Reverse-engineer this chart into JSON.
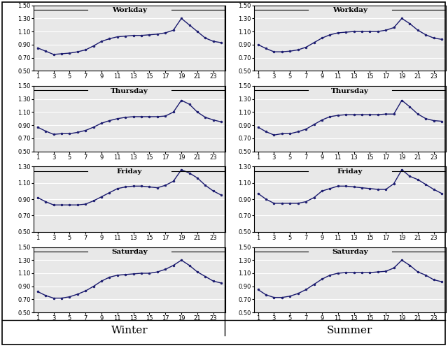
{
  "x": [
    1,
    2,
    3,
    4,
    5,
    6,
    7,
    8,
    9,
    10,
    11,
    12,
    13,
    14,
    15,
    16,
    17,
    18,
    19,
    20,
    21,
    22,
    23,
    24
  ],
  "winter_workday": [
    0.85,
    0.8,
    0.75,
    0.76,
    0.77,
    0.79,
    0.82,
    0.88,
    0.95,
    0.99,
    1.02,
    1.03,
    1.04,
    1.04,
    1.05,
    1.06,
    1.08,
    1.12,
    1.3,
    1.2,
    1.1,
    1.0,
    0.95,
    0.93
  ],
  "winter_thursday": [
    0.87,
    0.81,
    0.76,
    0.77,
    0.77,
    0.79,
    0.82,
    0.87,
    0.93,
    0.97,
    1.0,
    1.02,
    1.03,
    1.03,
    1.03,
    1.03,
    1.04,
    1.1,
    1.28,
    1.22,
    1.1,
    1.02,
    0.98,
    0.95
  ],
  "winter_friday": [
    0.92,
    0.87,
    0.83,
    0.83,
    0.83,
    0.83,
    0.84,
    0.88,
    0.93,
    0.98,
    1.03,
    1.05,
    1.06,
    1.06,
    1.05,
    1.04,
    1.07,
    1.12,
    1.26,
    1.22,
    1.16,
    1.07,
    1.0,
    0.95
  ],
  "winter_saturday": [
    0.82,
    0.76,
    0.72,
    0.72,
    0.74,
    0.78,
    0.83,
    0.9,
    0.98,
    1.04,
    1.07,
    1.08,
    1.09,
    1.1,
    1.1,
    1.12,
    1.16,
    1.22,
    1.3,
    1.22,
    1.12,
    1.05,
    0.98,
    0.95
  ],
  "summer_workday": [
    0.9,
    0.84,
    0.79,
    0.79,
    0.8,
    0.82,
    0.86,
    0.93,
    1.0,
    1.05,
    1.08,
    1.09,
    1.1,
    1.1,
    1.1,
    1.1,
    1.12,
    1.16,
    1.3,
    1.22,
    1.12,
    1.05,
    1.0,
    0.98
  ],
  "summer_thursday": [
    0.87,
    0.8,
    0.75,
    0.77,
    0.77,
    0.8,
    0.84,
    0.91,
    0.98,
    1.03,
    1.05,
    1.06,
    1.06,
    1.06,
    1.06,
    1.06,
    1.07,
    1.07,
    1.28,
    1.18,
    1.07,
    1.0,
    0.97,
    0.96
  ],
  "summer_friday": [
    0.97,
    0.9,
    0.85,
    0.85,
    0.85,
    0.85,
    0.87,
    0.92,
    1.0,
    1.03,
    1.06,
    1.06,
    1.05,
    1.04,
    1.03,
    1.02,
    1.02,
    1.09,
    1.26,
    1.18,
    1.14,
    1.08,
    1.02,
    0.97
  ],
  "summer_saturday": [
    0.85,
    0.77,
    0.73,
    0.73,
    0.75,
    0.79,
    0.85,
    0.93,
    1.01,
    1.07,
    1.1,
    1.11,
    1.11,
    1.11,
    1.11,
    1.12,
    1.13,
    1.18,
    1.3,
    1.22,
    1.12,
    1.07,
    1.0,
    0.97
  ],
  "row_labels": [
    "Workday",
    "Thursday",
    "Friday",
    "Saturday"
  ],
  "col_labels": [
    "Winter",
    "Summer"
  ],
  "ylim_configs": [
    [
      0.5,
      1.5,
      [
        0.5,
        0.7,
        0.9,
        1.1,
        1.3,
        1.5
      ]
    ],
    [
      0.5,
      1.5,
      [
        0.5,
        0.7,
        0.9,
        1.1,
        1.3,
        1.5
      ]
    ],
    [
      0.5,
      1.3,
      [
        0.5,
        0.7,
        0.9,
        1.1,
        1.3
      ]
    ],
    [
      0.5,
      1.5,
      [
        0.5,
        0.7,
        0.9,
        1.1,
        1.3,
        1.5
      ]
    ]
  ],
  "line_color": "#1a1a6e",
  "marker": "o",
  "markersize": 2.0,
  "linewidth": 1.0,
  "bg_color": "#e8e8e8",
  "grid_color": "#ffffff",
  "title_fontsize": 7.5,
  "tick_fontsize": 6.0,
  "col_label_fontsize": 11,
  "x_ticks": [
    1,
    3,
    5,
    7,
    9,
    11,
    13,
    15,
    17,
    19,
    21,
    23
  ]
}
